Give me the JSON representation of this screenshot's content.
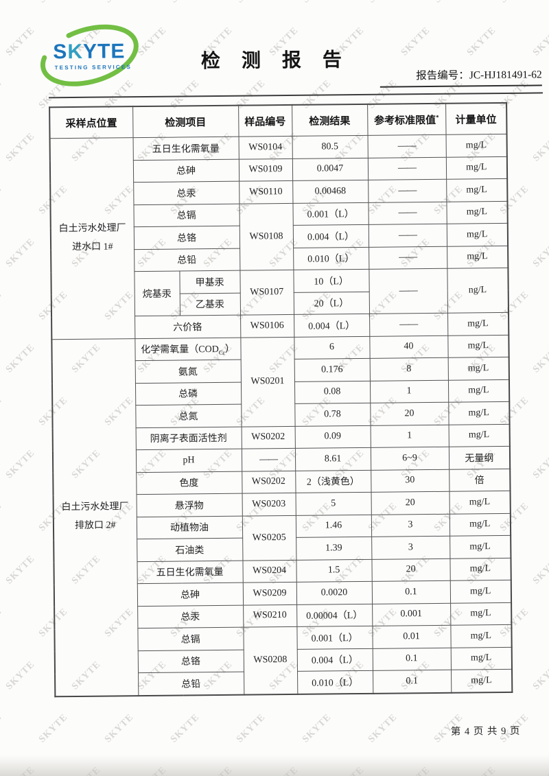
{
  "logo": {
    "part1": "S",
    "part2": "K",
    "part3": "YTE",
    "tagline": "TESTING SERVICES",
    "blue": "#1b75bc",
    "teal": "#2f9fc3",
    "green": "#72bf44"
  },
  "title": "检 测 报 告",
  "report": {
    "label": "报告编号：",
    "number": "JC-HJ181491-62"
  },
  "watermark": {
    "text": "SKYTE"
  },
  "footer": {
    "page_text": "第 4 页 共 9 页"
  },
  "table": {
    "headers": {
      "location": "采样点位置",
      "item": "检测项目",
      "sample": "样品编号",
      "result": "检测结果",
      "limit": "参考标准限值",
      "limit_sup": "*",
      "unit": "计量单位"
    },
    "locations": [
      {
        "line1": "白土污水处理厂",
        "line2": "进水口 1#"
      },
      {
        "line1": "白土污水处理厂",
        "line2": "排放口 2#"
      }
    ],
    "rows": [
      {
        "item": "五日生化需氧量",
        "sample": "WS0104",
        "result": "80.5",
        "limit": "——",
        "unit": "mg/L"
      },
      {
        "item": "总砷",
        "sample": "WS0109",
        "result": "0.0047",
        "limit": "——",
        "unit": "mg/L"
      },
      {
        "item": "总汞",
        "sample": "WS0110",
        "result": "0.00468",
        "limit": "——",
        "unit": "mg/L"
      },
      {
        "item": "总镉",
        "sample": "WS0108",
        "result": "0.001（L）",
        "limit": "——",
        "unit": "mg/L"
      },
      {
        "item": "总铬",
        "result": "0.004（L）",
        "limit": "——",
        "unit": "mg/L"
      },
      {
        "item": "总铅",
        "result": "0.010（L）",
        "limit": "——",
        "unit": "mg/L"
      },
      {
        "group": "烷基汞",
        "item": "甲基汞",
        "sample": "WS0107",
        "result": "10（L）",
        "limit": "——",
        "unit": "ng/L"
      },
      {
        "item": "乙基汞",
        "result": "20（L）"
      },
      {
        "item": "六价铬",
        "sample": "WS0106",
        "result": "0.004（L）",
        "limit": "——",
        "unit": "mg/L"
      },
      {
        "item": "化学需氧量（COD",
        "item_sub": "Cr",
        "item_end": "）",
        "sample": "WS0201",
        "result": "6",
        "limit": "40",
        "unit": "mg/L"
      },
      {
        "item": "氨氮",
        "result": "0.176",
        "limit": "8",
        "unit": "mg/L"
      },
      {
        "item": "总磷",
        "result": "0.08",
        "limit": "1",
        "unit": "mg/L"
      },
      {
        "item": "总氮",
        "result": "0.78",
        "limit": "20",
        "unit": "mg/L"
      },
      {
        "item": "阴离子表面活性剂",
        "sample": "WS0202",
        "result": "0.09",
        "limit": "1",
        "unit": "mg/L"
      },
      {
        "item": "pH",
        "sample": "——",
        "result": "8.61",
        "limit": "6~9",
        "unit": "无量纲"
      },
      {
        "item": "色度",
        "sample": "WS0202",
        "result": "2（浅黄色）",
        "limit": "30",
        "unit": "倍"
      },
      {
        "item": "悬浮物",
        "sample": "WS0203",
        "result": "5",
        "limit": "20",
        "unit": "mg/L"
      },
      {
        "item": "动植物油",
        "sample": "WS0205",
        "result": "1.46",
        "limit": "3",
        "unit": "mg/L"
      },
      {
        "item": "石油类",
        "result": "1.39",
        "limit": "3",
        "unit": "mg/L"
      },
      {
        "item": "五日生化需氧量",
        "sample": "WS0204",
        "result": "1.5",
        "limit": "20",
        "unit": "mg/L"
      },
      {
        "item": "总砷",
        "sample": "WS0209",
        "result": "0.0020",
        "limit": "0.1",
        "unit": "mg/L"
      },
      {
        "item": "总汞",
        "sample": "WS0210",
        "result": "0.00004（L）",
        "limit": "0.001",
        "unit": "mg/L"
      },
      {
        "item": "总镉",
        "sample": "WS0208",
        "result": "0.001（L）",
        "limit": "0.01",
        "unit": "mg/L"
      },
      {
        "item": "总铬",
        "result": "0.004（L）",
        "limit": "0.1",
        "unit": "mg/L"
      },
      {
        "item": "总铅",
        "result": "0.010（L）",
        "limit": "0.1",
        "unit": "mg/L"
      }
    ]
  }
}
